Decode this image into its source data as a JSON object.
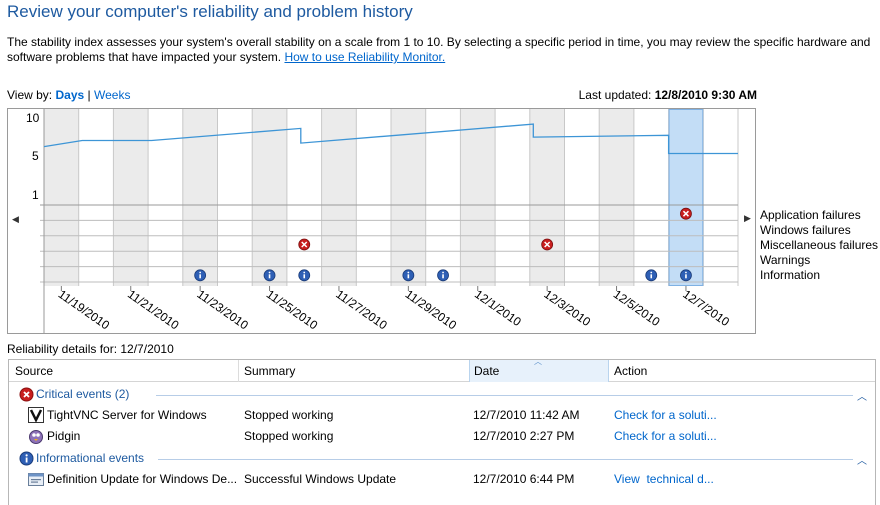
{
  "header": {
    "title": "Review your computer's reliability and problem history",
    "description": "The stability index assesses your system's overall stability on a scale from 1 to 10. By selecting a specific period in time, you may review the specific hardware and software problems that have impacted your system.",
    "help_link": "How to use Reliability Monitor."
  },
  "view_by": {
    "label": "View by:",
    "days": "Days",
    "separator": "|",
    "weeks": "Weeks"
  },
  "last_updated": {
    "label": "Last updated:",
    "value": "12/8/2010 9:30 AM"
  },
  "chart": {
    "y_ticks": [
      "10",
      "5",
      "1"
    ],
    "legend": [
      "Application failures",
      "Windows failures",
      "Miscellaneous failures",
      "Warnings",
      "Information"
    ],
    "date_labels": [
      "11/19/2010",
      "11/21/2010",
      "11/23/2010",
      "11/25/2010",
      "11/27/2010",
      "11/29/2010",
      "12/1/2010",
      "12/3/2010",
      "12/5/2010",
      "12/7/2010"
    ],
    "selected_column": 18
  },
  "chart_data": {
    "type": "line",
    "columns": 20,
    "ylim": [
      1,
      10
    ],
    "stability_index": [
      {
        "x": 0,
        "y": 6.7
      },
      {
        "x": 1.1,
        "y": 7.4
      },
      {
        "x": 3.1,
        "y": 7.4
      },
      {
        "x": 7.4,
        "y": 8.8
      },
      {
        "x": 7.4,
        "y": 7.1
      },
      {
        "x": 14.1,
        "y": 9.3
      },
      {
        "x": 14.1,
        "y": 7.8
      },
      {
        "x": 18.0,
        "y": 8.0
      },
      {
        "x": 18.0,
        "y": 5.9
      },
      {
        "x": 20.0,
        "y": 5.9
      }
    ],
    "events": {
      "application_failures": [
        18
      ],
      "windows_failures": [],
      "miscellaneous_failures": [
        7,
        14
      ],
      "warnings": [],
      "information": [
        4,
        6,
        7,
        10,
        11,
        17,
        18
      ]
    }
  },
  "details": {
    "label": "Reliability details for: 12/7/2010",
    "columns": [
      "Source",
      "Summary",
      "Date",
      "Action"
    ],
    "groups": [
      {
        "title": "Critical events (2)",
        "icon": "error-icon",
        "rows": [
          {
            "icon": "tightvnc-icon",
            "source": "TightVNC Server for Windows",
            "summary": "Stopped working",
            "date": "12/7/2010 11:42 AM",
            "action": "Check for a soluti..."
          },
          {
            "icon": "pidgin-icon",
            "source": "Pidgin",
            "summary": "Stopped working",
            "date": "12/7/2010 2:27 PM",
            "action": "Check for a soluti..."
          }
        ]
      },
      {
        "title": "Informational events",
        "icon": "info-icon",
        "rows": [
          {
            "icon": "windows-update-icon",
            "source": "Definition Update for Windows De...",
            "summary": "Successful Windows Update",
            "date": "12/7/2010 6:44 PM",
            "action": "View  technical d..."
          }
        ]
      }
    ]
  },
  "colors": {
    "title": "#1e5aa0",
    "link": "#0066cc",
    "line": "#3d95d6",
    "selected": "#c3ddf6",
    "shaded": "#ebebeb",
    "error": "#c81e1e",
    "info": "#2e5fb5"
  }
}
